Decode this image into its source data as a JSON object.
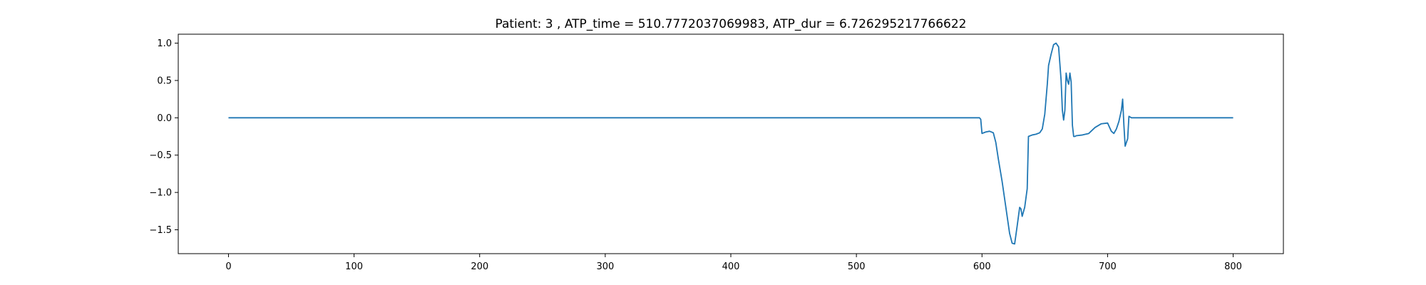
{
  "chart_data": {
    "type": "line",
    "title": "Patient: 3 , ATP_time = 510.7772037069983, ATP_dur = 6.726295217766622",
    "xlabel": "",
    "ylabel": "",
    "xlim": [
      -40,
      840
    ],
    "ylim": [
      -1.82,
      1.12
    ],
    "grid": false,
    "x_ticks": [
      0,
      100,
      200,
      300,
      400,
      500,
      600,
      700,
      800
    ],
    "x_tick_labels": [
      "0",
      "100",
      "200",
      "300",
      "400",
      "500",
      "600",
      "700",
      "800"
    ],
    "y_ticks": [
      1.0,
      0.5,
      0.0,
      -0.5,
      -1.0,
      -1.5
    ],
    "y_tick_labels": [
      "1.0",
      "0.5",
      "0.0",
      "−0.5",
      "−1.0",
      "−1.5"
    ],
    "series": [
      {
        "color": "#1f77b4",
        "x": [
          0,
          100,
          200,
          300,
          400,
          500,
          598,
          599,
          600,
          603,
          606,
          609,
          611,
          613,
          616,
          619,
          622,
          624,
          626,
          628,
          630,
          631,
          632,
          634,
          636,
          637,
          640,
          643,
          646,
          648,
          650,
          652,
          653,
          655,
          657,
          659,
          661,
          663,
          664,
          665,
          666,
          667,
          668,
          669,
          670,
          671,
          672,
          673,
          674,
          675,
          680,
          685,
          690,
          695,
          700,
          703,
          705,
          707,
          709,
          711,
          712,
          713,
          714,
          715,
          716,
          717,
          718,
          719,
          720,
          730,
          750,
          800
        ],
        "y": [
          0,
          0,
          0,
          0,
          0,
          0,
          0,
          -0.02,
          -0.21,
          -0.19,
          -0.18,
          -0.2,
          -0.33,
          -0.55,
          -0.85,
          -1.2,
          -1.55,
          -1.68,
          -1.69,
          -1.45,
          -1.2,
          -1.22,
          -1.32,
          -1.2,
          -0.95,
          -0.25,
          -0.23,
          -0.22,
          -0.2,
          -0.15,
          0.05,
          0.45,
          0.7,
          0.85,
          0.98,
          1.0,
          0.95,
          0.5,
          0.1,
          -0.03,
          0.1,
          0.6,
          0.5,
          0.45,
          0.6,
          0.48,
          -0.1,
          -0.25,
          -0.25,
          -0.24,
          -0.23,
          -0.21,
          -0.13,
          -0.08,
          -0.07,
          -0.18,
          -0.21,
          -0.15,
          -0.05,
          0.1,
          0.25,
          -0.1,
          -0.38,
          -0.33,
          -0.28,
          0.02,
          0.01,
          0.0,
          0,
          0,
          0,
          0
        ]
      }
    ]
  }
}
